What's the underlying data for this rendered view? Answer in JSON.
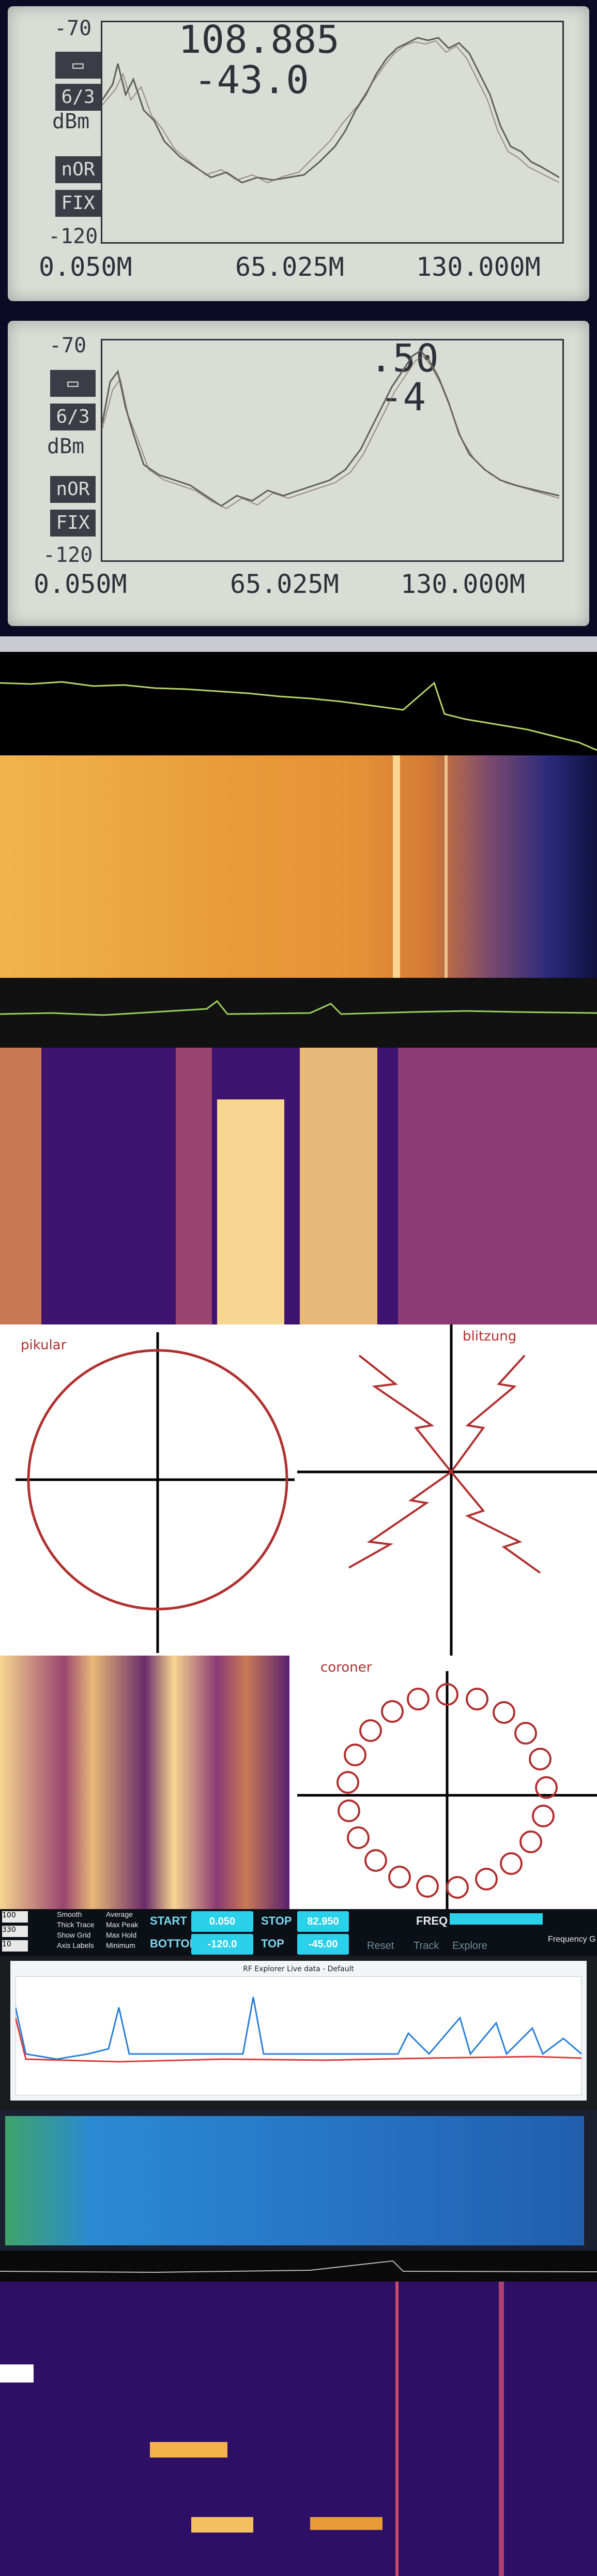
{
  "lcd_top": {
    "y_labels": [
      "-70",
      "dBm",
      "-120"
    ],
    "buttons": [
      "▭",
      "6/3",
      "nOR",
      "FIX"
    ],
    "x_labels": [
      "0.050M",
      "65.025M",
      "130.000M"
    ],
    "readout_freq": "108.885",
    "readout_level": "-43.0"
  },
  "lcd_bottom": {
    "y_labels": [
      "-70",
      "dBm",
      "-120"
    ],
    "buttons": [
      "▭",
      "6/3",
      "nOR",
      "FIX"
    ],
    "x_labels": [
      "0.050M",
      "65.025M",
      "130.000M"
    ],
    "readout_freq": ".50",
    "readout_level": "-4"
  },
  "sdr": {
    "label_pikular": "pikular",
    "label_blitz": "blitzung",
    "label_coroner": "coroner"
  },
  "controls": {
    "start_label": "START",
    "start_value": "0.050",
    "stop_label": "STOP",
    "stop_value": "82.950",
    "bottom_label": "BOTTOM",
    "bottom_value": "-120.0",
    "top_label": "TOP",
    "top_value": "-45.00",
    "freq_label": "FREQ",
    "track_label": "Track",
    "explore_label": "Explore",
    "reset_label": "Reset",
    "frequency_label": "Frequency G",
    "left_values": [
      "100",
      "330",
      "10"
    ],
    "checks": [
      "Smooth",
      "Thick Trace",
      "Show Grid",
      "Axis Labels"
    ],
    "checks_right": [
      "Average",
      "Max Peak",
      "Max Hold",
      "Minimum"
    ]
  },
  "rf_explorer": {
    "title": "RF Explorer Live data - Default"
  }
}
